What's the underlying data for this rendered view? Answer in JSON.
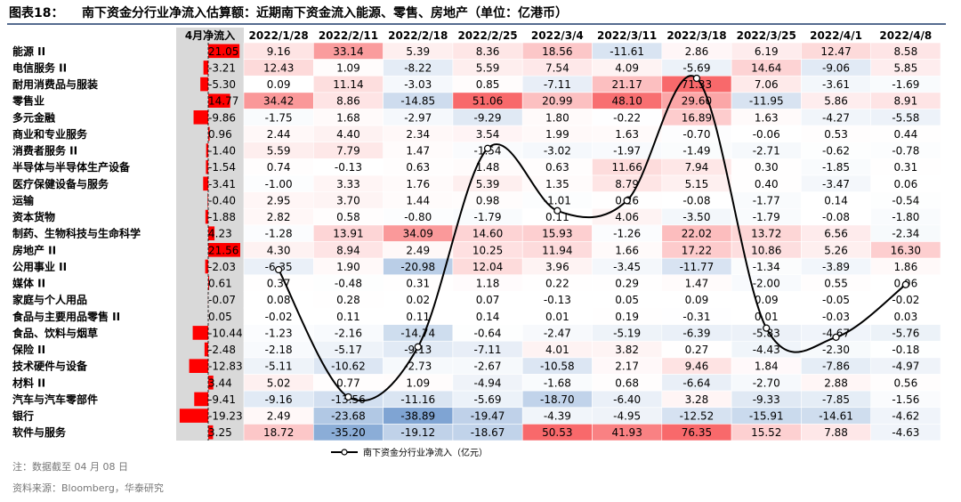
{
  "figure": {
    "title_label": "图表18：",
    "title_text": "南下资金分行业净流入估算额：近期南下资金流入能源、零售、房地产（单位：亿港币）",
    "note": "注：数据截至 04 月 08 日",
    "source": "资料来源：Bloomberg，华泰研究",
    "legend_label": "南下资金分行业净流入（亿元）"
  },
  "chart_data": {
    "type": "table",
    "april_header": "4月净流入",
    "dates": [
      "2022/1/28",
      "2022/2/11",
      "2022/2/18",
      "2022/2/25",
      "2022/3/4",
      "2022/3/11",
      "2022/3/18",
      "2022/3/25",
      "2022/4/1",
      "2022/4/8"
    ],
    "rows": [
      {
        "name": "能源 II",
        "april": "21.05",
        "values": [
          9.16,
          33.14,
          5.39,
          8.36,
          18.56,
          -11.61,
          2.86,
          6.19,
          12.47,
          8.58
        ]
      },
      {
        "name": "电信服务 II",
        "april": "-3.21",
        "values": [
          12.43,
          1.09,
          -8.22,
          5.59,
          7.54,
          4.09,
          -5.69,
          14.64,
          -9.06,
          5.85
        ]
      },
      {
        "name": "耐用消费品与服装",
        "april": "-5.30",
        "values": [
          0.09,
          11.14,
          -3.03,
          0.85,
          -7.11,
          21.17,
          71.33,
          7.06,
          -3.61,
          -1.69
        ]
      },
      {
        "name": "零售业",
        "april": "14.77",
        "values": [
          34.42,
          8.86,
          -14.85,
          51.06,
          20.99,
          48.1,
          29.6,
          -11.95,
          5.86,
          8.91
        ]
      },
      {
        "name": "多元金融",
        "april": "-9.86",
        "values": [
          -1.75,
          1.68,
          -2.97,
          -9.29,
          1.8,
          -0.22,
          16.89,
          1.63,
          -4.27,
          -5.58
        ]
      },
      {
        "name": "商业和专业服务",
        "april": "0.96",
        "values": [
          2.44,
          4.4,
          2.34,
          3.54,
          1.99,
          1.63,
          -0.7,
          -0.06,
          0.53,
          0.44
        ]
      },
      {
        "name": "消费者服务 II",
        "april": "-1.40",
        "values": [
          5.59,
          7.79,
          1.47,
          -1.54,
          -3.02,
          -1.97,
          -1.49,
          -2.71,
          -0.62,
          -0.78
        ]
      },
      {
        "name": "半导体与半导体生产设备",
        "april": "-1.54",
        "values": [
          0.74,
          -0.13,
          0.63,
          1.48,
          0.63,
          11.66,
          7.94,
          0.3,
          -1.85,
          0.31
        ]
      },
      {
        "name": "医疗保健设备与服务",
        "april": "-3.41",
        "values": [
          -1.0,
          3.33,
          1.76,
          5.39,
          1.35,
          8.79,
          5.15,
          0.4,
          -3.47,
          0.06
        ]
      },
      {
        "name": "运输",
        "april": "-0.40",
        "values": [
          2.95,
          3.7,
          1.44,
          0.98,
          -1.01,
          0.26,
          -0.08,
          -1.77,
          0.14,
          -0.54
        ]
      },
      {
        "name": "资本货物",
        "april": "-1.88",
        "values": [
          2.82,
          0.58,
          -0.8,
          -1.79,
          0.11,
          4.06,
          -3.5,
          -1.79,
          -0.08,
          -1.8
        ]
      },
      {
        "name": "制药、生物科技与生命科学",
        "april": "4.23",
        "values": [
          -1.28,
          13.91,
          34.09,
          14.6,
          15.93,
          -1.26,
          22.02,
          13.72,
          6.56,
          -2.34
        ]
      },
      {
        "name": "房地产 II",
        "april": "21.56",
        "values": [
          4.3,
          8.94,
          2.49,
          10.25,
          11.94,
          1.66,
          17.22,
          10.86,
          5.26,
          16.3
        ]
      },
      {
        "name": "公用事业 II",
        "april": "-2.03",
        "values": [
          -6.35,
          1.9,
          -20.98,
          12.04,
          3.96,
          -3.45,
          -11.77,
          -1.34,
          -3.89,
          1.86
        ]
      },
      {
        "name": "媒体 II",
        "april": "0.61",
        "values": [
          0.37,
          -0.48,
          0.31,
          1.18,
          0.22,
          0.29,
          1.47,
          -2.0,
          0.55,
          0.06
        ]
      },
      {
        "name": "家庭与个人用品",
        "april": "-0.07",
        "values": [
          0.08,
          0.28,
          0.02,
          0.07,
          -0.13,
          0.05,
          0.09,
          0.09,
          -0.05,
          -0.02
        ]
      },
      {
        "name": "食品与主要用品零售 II",
        "april": "0.05",
        "values": [
          -0.02,
          0.11,
          0.11,
          0.14,
          0.01,
          0.19,
          -0.31,
          0.01,
          -0.03,
          0.03
        ]
      },
      {
        "name": "食品、饮料与烟草",
        "april": "-10.44",
        "values": [
          -1.23,
          -2.16,
          -14.74,
          -0.64,
          -2.47,
          -5.19,
          -6.39,
          -5.83,
          -4.67,
          -5.76
        ]
      },
      {
        "name": "保险 II",
        "april": "-2.48",
        "values": [
          -2.18,
          -5.17,
          -9.13,
          -7.11,
          4.01,
          3.82,
          0.27,
          -4.43,
          -2.3,
          -0.18
        ]
      },
      {
        "name": "技术硬件与设备",
        "april": "-12.83",
        "values": [
          -5.11,
          -10.62,
          -2.73,
          -2.67,
          -10.58,
          2.17,
          9.46,
          1.84,
          -7.86,
          -4.97
        ]
      },
      {
        "name": "材料 II",
        "april": "3.44",
        "values": [
          5.02,
          0.77,
          1.09,
          -4.94,
          -1.68,
          0.68,
          -6.64,
          -2.7,
          2.88,
          0.56
        ]
      },
      {
        "name": "汽车与汽车零部件",
        "april": "-9.41",
        "values": [
          -9.16,
          -13.56,
          -11.16,
          -5.69,
          -18.7,
          -6.4,
          3.28,
          -9.33,
          -7.85,
          -1.56
        ]
      },
      {
        "name": "银行",
        "april": "-19.23",
        "values": [
          2.49,
          -23.68,
          -38.89,
          -19.47,
          -4.39,
          -4.95,
          -12.52,
          -15.91,
          -14.61,
          -4.62
        ]
      },
      {
        "name": "软件与服务",
        "april": "3.25",
        "values": [
          18.72,
          -35.2,
          -19.12,
          -18.67,
          50.53,
          41.93,
          76.35,
          15.52,
          7.88,
          -4.63
        ]
      }
    ],
    "line_series": {
      "name": "南下资金分行业净流入（亿元）",
      "values": [
        48.2,
        -66.2,
        -21.2,
        157.2,
        101.2,
        110.3,
        220.2,
        -4.3,
        -12.5,
        34.8
      ]
    }
  }
}
